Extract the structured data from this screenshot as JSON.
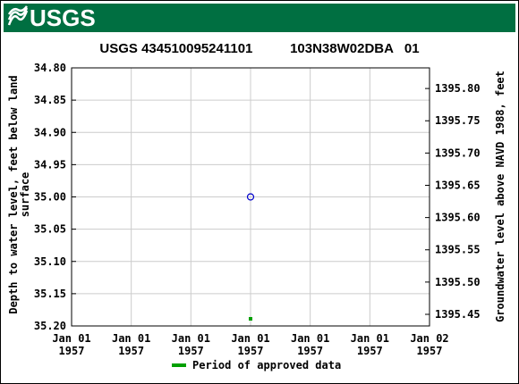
{
  "header": {
    "logo": "USGS"
  },
  "chart_data": {
    "type": "scatter",
    "title": "USGS 434510095241101          103N38W02DBA   01",
    "y_label": "Depth to water level, feet below land surface",
    "y2_label": "Groundwater level above NAVD 1988, feet",
    "xlim": [
      0,
      24
    ],
    "xticks": [
      {
        "value": 0,
        "label": "Jan 01\n1957"
      },
      {
        "value": 4,
        "label": "Jan 01\n1957"
      },
      {
        "value": 8,
        "label": "Jan 01\n1957"
      },
      {
        "value": 12,
        "label": "Jan 01\n1957"
      },
      {
        "value": 16,
        "label": "Jan 01\n1957"
      },
      {
        "value": 20,
        "label": "Jan 01\n1957"
      },
      {
        "value": 24,
        "label": "Jan 02\n1957"
      }
    ],
    "ylim": [
      35.2,
      34.8
    ],
    "yticks": [
      {
        "value": 34.8,
        "label": "34.80"
      },
      34.85,
      {
        "value": 34.9,
        "label": "34.90"
      },
      34.95,
      {
        "value": 35.0,
        "label": "35.00"
      },
      35.05,
      {
        "value": 35.1,
        "label": "35.10"
      },
      35.15,
      {
        "value": 35.2,
        "label": "35.20"
      }
    ],
    "y2lim": [
      1395.432,
      1395.832
    ],
    "y2ticks": [
      {
        "value": 1395.8,
        "label": "1395.80"
      },
      1395.75,
      {
        "value": 1395.7,
        "label": "1395.70"
      },
      1395.65,
      {
        "value": 1395.6,
        "label": "1395.60"
      },
      1395.55,
      {
        "value": 1395.5,
        "label": "1395.50"
      },
      1395.45
    ],
    "grid": true,
    "series": [
      {
        "color": "#0000cc",
        "x": [
          12
        ],
        "values": [
          35.0
        ]
      }
    ],
    "approved_periods": {
      "name": "Period of approved data",
      "color": "#00a000",
      "x": [
        12
      ]
    }
  }
}
